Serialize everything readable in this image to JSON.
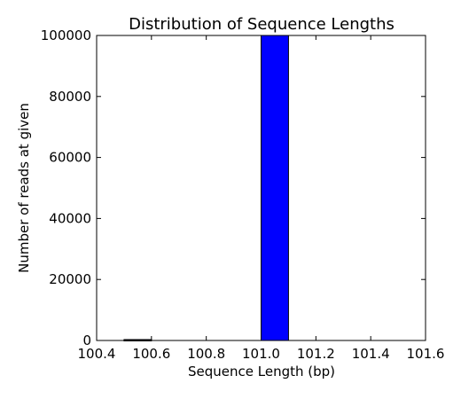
{
  "chart_data": {
    "type": "bar",
    "title": "Distribution of Sequence Lengths",
    "xlabel": "Sequence Length (bp)",
    "ylabel": "Number of reads at given",
    "xlim": [
      100.4,
      101.6
    ],
    "ylim": [
      0,
      100000
    ],
    "xticks": [
      100.4,
      100.6,
      100.8,
      101.0,
      101.2,
      101.4,
      101.6
    ],
    "xtick_labels": [
      "100.4",
      "100.6",
      "100.8",
      "101.0",
      "101.2",
      "101.4",
      "101.6"
    ],
    "yticks": [
      0,
      20000,
      40000,
      60000,
      80000,
      100000
    ],
    "ytick_labels": [
      "0",
      "20000",
      "40000",
      "60000",
      "80000",
      "100000"
    ],
    "grid": false,
    "bars": [
      {
        "x_start": 100.5,
        "x_end": 100.6,
        "value": 300
      },
      {
        "x_start": 101.0,
        "x_end": 101.1,
        "value": 100000
      }
    ],
    "bar_color": "#0000ff",
    "edge_color": "#000000"
  }
}
